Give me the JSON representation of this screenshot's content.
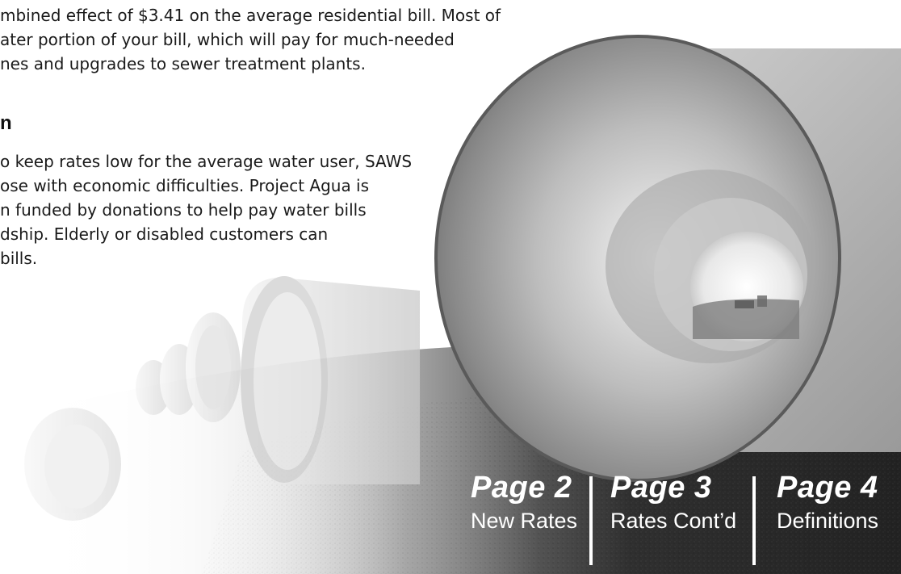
{
  "article": {
    "paragraph1_lines": [
      "mbined effect of $3.41 on the average residential bill. Most of",
      "ater portion of your bill, which will pay for much-needed",
      "nes and upgrades to sewer treatment plants."
    ],
    "heading": "n",
    "paragraph2_lines": [
      "o keep rates low for the average water user, SAWS",
      "ose with economic difficulties. Project Agua is",
      "n funded by donations to help pay water bills",
      "dship. Elderly or disabled customers can",
      "bills."
    ]
  },
  "footer_nav": [
    {
      "page": "Page 2",
      "label": "New Rates"
    },
    {
      "page": "Page 3",
      "label": "Rates Cont’d"
    },
    {
      "page": "Page 4",
      "label": "Definitions"
    }
  ],
  "colors": {
    "text": "#1a1a1a",
    "nav_text": "#ffffff",
    "ground_dark": "#2b2b2b"
  }
}
